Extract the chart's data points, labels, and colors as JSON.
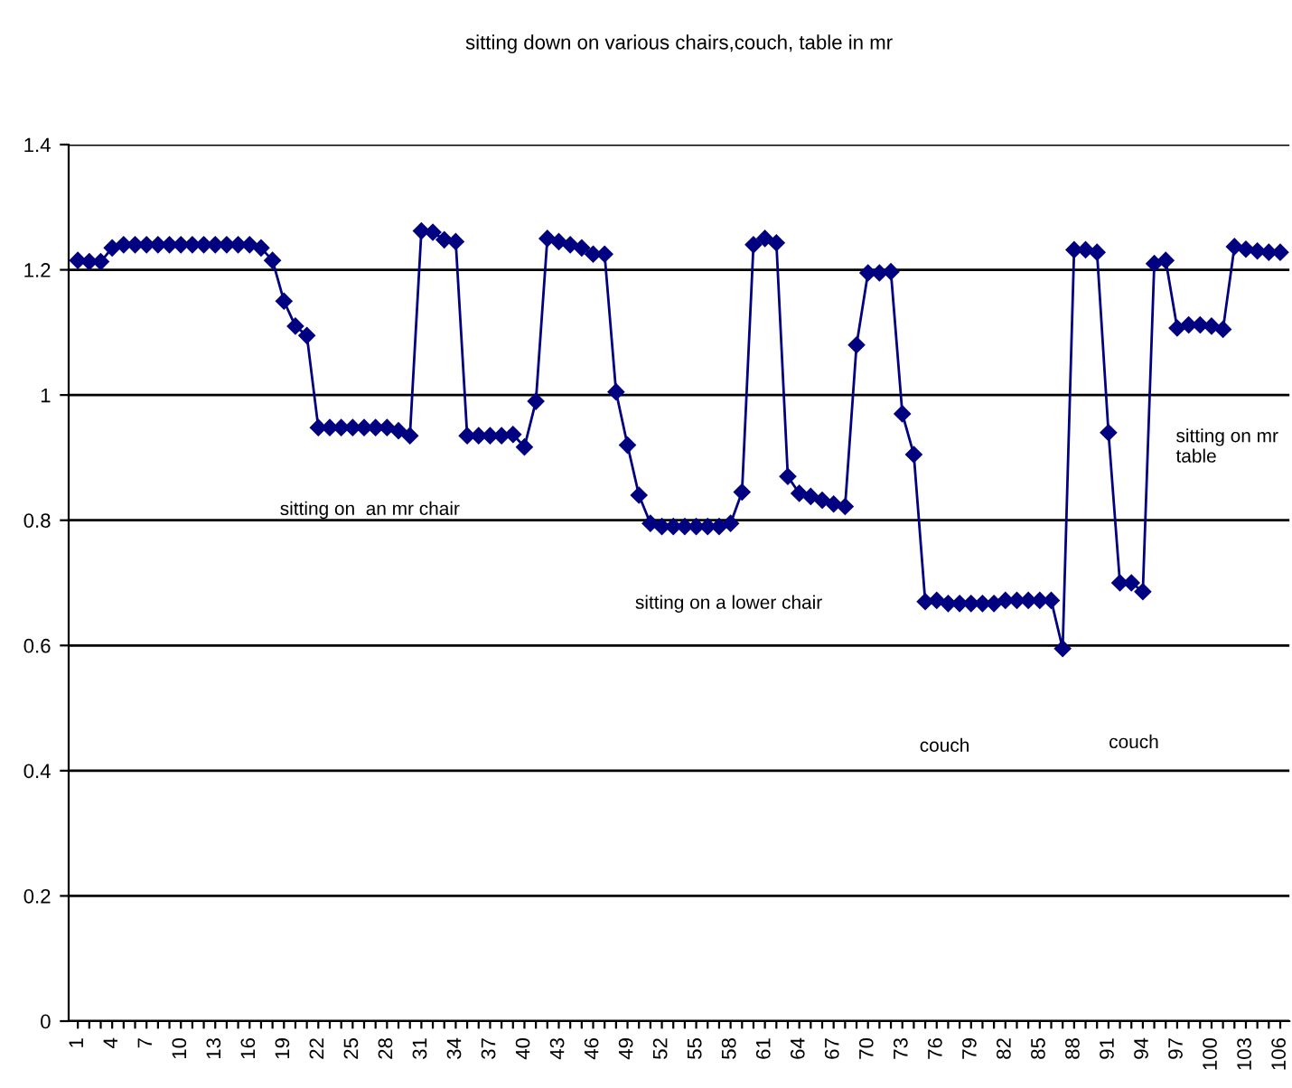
{
  "chart_data": {
    "type": "line",
    "title": "sitting down on various chairs,couch, table in mr",
    "categories": [
      "1",
      null,
      null,
      "4",
      null,
      null,
      "7",
      null,
      null,
      "10",
      null,
      null,
      "13",
      null,
      null,
      "16",
      null,
      null,
      "19",
      null,
      null,
      "22",
      null,
      null,
      "25",
      null,
      null,
      "28",
      null,
      null,
      "31",
      null,
      null,
      "34",
      null,
      null,
      "37",
      null,
      null,
      "40",
      null,
      null,
      "43",
      null,
      null,
      "46",
      null,
      null,
      "49",
      null,
      null,
      "52",
      null,
      null,
      "55",
      null,
      null,
      "58",
      null,
      null,
      "61",
      null,
      null,
      "64",
      null,
      null,
      "67",
      null,
      null,
      "70",
      null,
      null,
      "73",
      null,
      null,
      "76",
      null,
      null,
      "79",
      null,
      null,
      "82",
      null,
      null,
      "85",
      null,
      null,
      "88",
      null,
      null,
      "91",
      null,
      null,
      "94",
      null,
      null,
      "97",
      null,
      null,
      "100",
      null,
      null,
      "103",
      null,
      null,
      "106"
    ],
    "series": [
      {
        "color": "#000080",
        "values": [
          1.215,
          1.213,
          1.213,
          1.235,
          1.24,
          1.24,
          1.24,
          1.24,
          1.24,
          1.24,
          1.24,
          1.24,
          1.24,
          1.24,
          1.24,
          1.24,
          1.235,
          1.215,
          1.15,
          1.11,
          1.095,
          0.948,
          0.948,
          0.948,
          0.948,
          0.948,
          0.948,
          0.948,
          0.943,
          0.935,
          1.262,
          1.26,
          1.248,
          1.245,
          0.935,
          0.935,
          0.935,
          0.935,
          0.937,
          0.917,
          0.99,
          1.25,
          1.245,
          1.24,
          1.235,
          1.225,
          1.225,
          1.005,
          0.92,
          0.84,
          0.795,
          0.79,
          0.79,
          0.79,
          0.79,
          0.79,
          0.79,
          0.795,
          0.845,
          1.24,
          1.25,
          1.243,
          0.87,
          0.843,
          0.838,
          0.832,
          0.826,
          0.822,
          1.08,
          1.195,
          1.195,
          1.197,
          0.97,
          0.905,
          0.67,
          0.672,
          0.667,
          0.667,
          0.667,
          0.667,
          0.667,
          0.672,
          0.672,
          0.672,
          0.672,
          0.672,
          0.595,
          1.232,
          1.232,
          1.228,
          0.94,
          0.7,
          0.7,
          0.686,
          1.21,
          1.215,
          1.107,
          1.112,
          1.112,
          1.11,
          1.105,
          1.237,
          1.233,
          1.23,
          1.228,
          1.228
        ]
      }
    ],
    "ylim": [
      0,
      1.4
    ],
    "yticks": [
      0,
      0.2,
      0.4,
      0.6,
      0.8,
      1,
      1.2,
      1.4
    ],
    "grid": "y",
    "marker": "diamond",
    "line_style": "solid",
    "annotations": [
      "sitting on  an mr chair",
      "sitting on a lower chair",
      "couch",
      "couch",
      "sitting on mr\ntable"
    ]
  }
}
